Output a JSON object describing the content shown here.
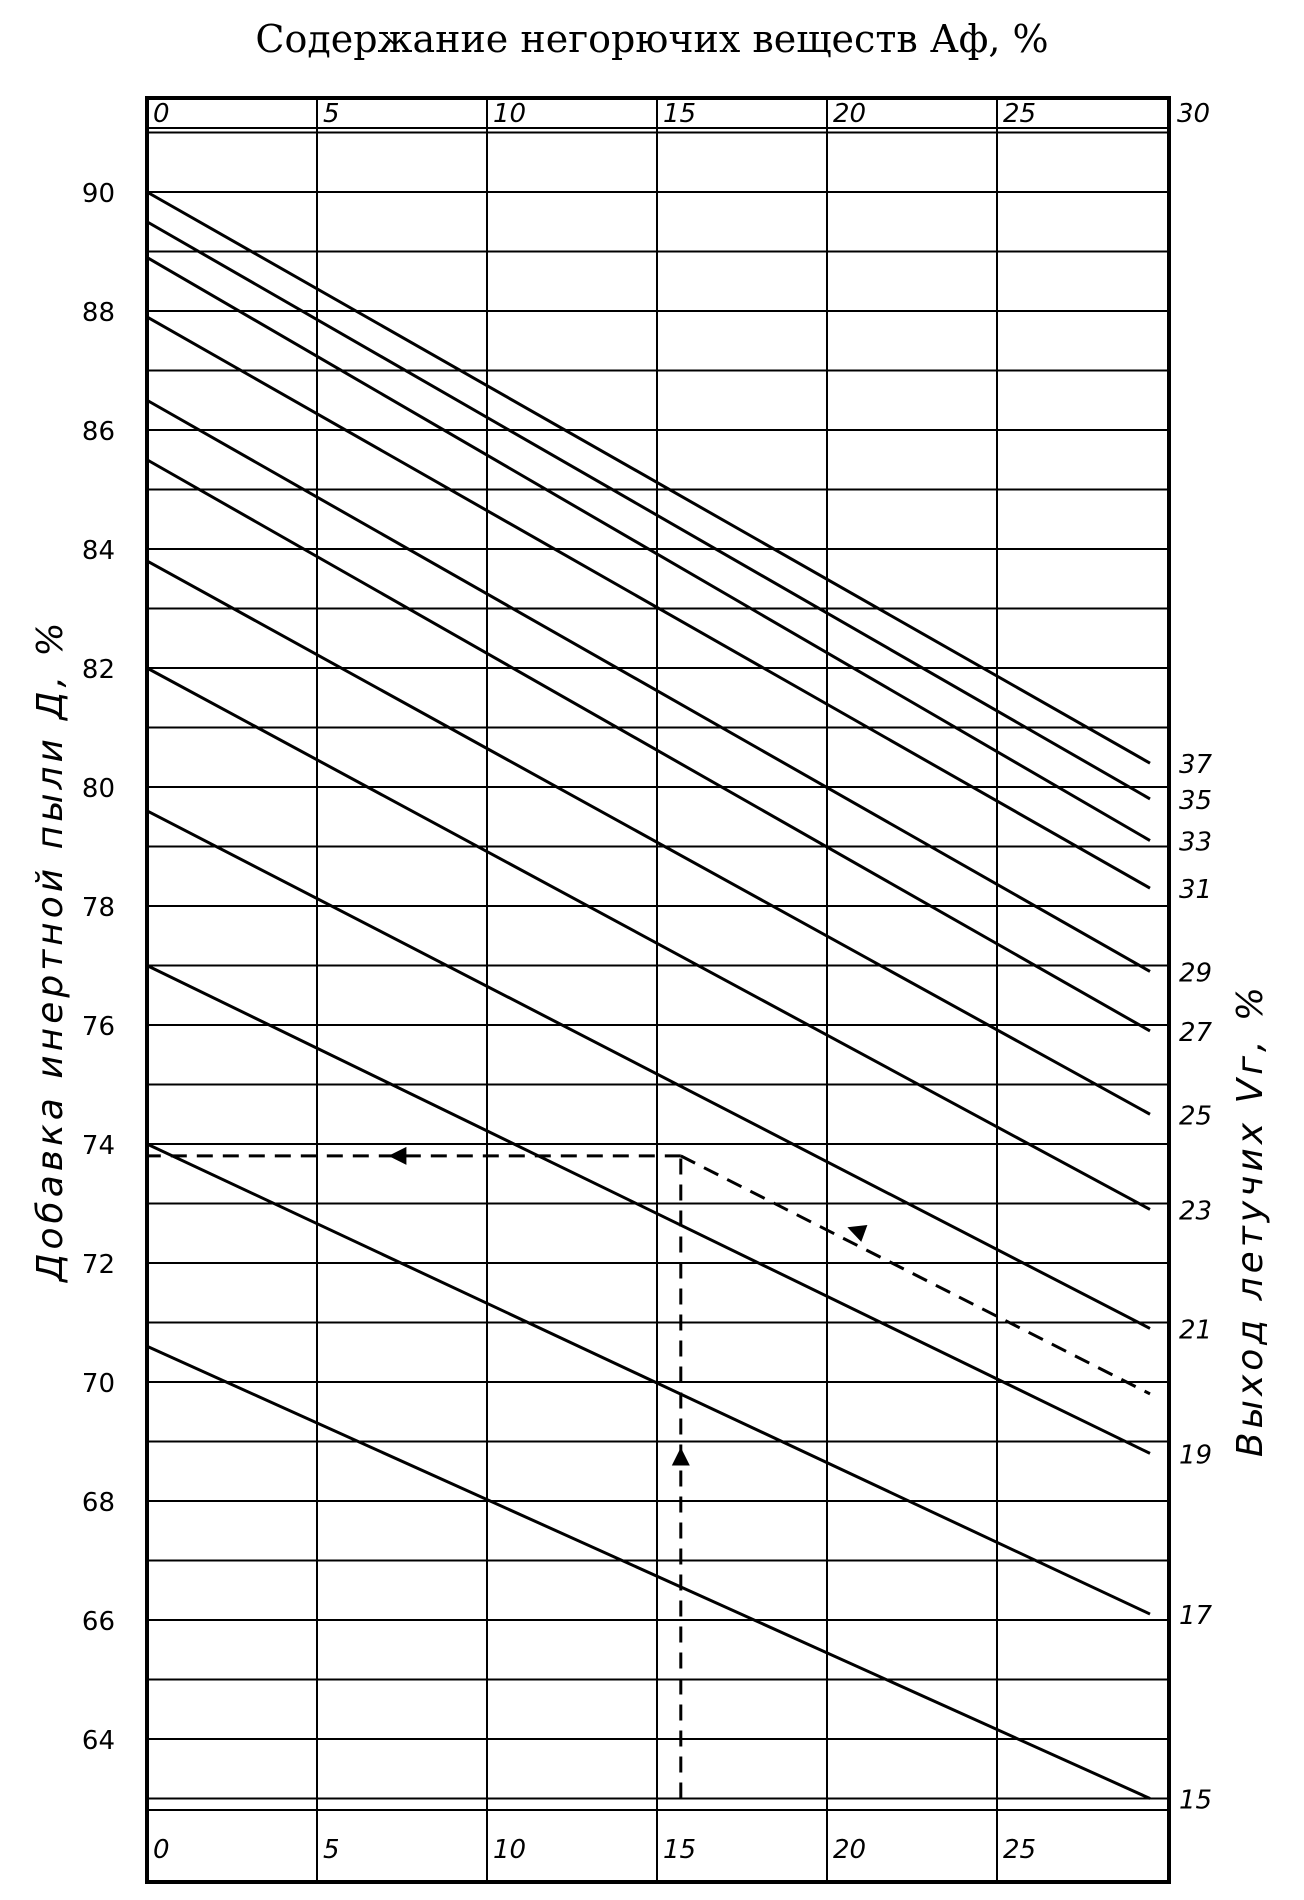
{
  "chart_data": {
    "type": "line",
    "title": "Содержание негорючих веществ Аф, %",
    "xlabel": "",
    "ylabel": "Добавка инертной пыли Д, %",
    "right_label": "Выход летучих Vг, %",
    "xlim": [
      0,
      30
    ],
    "ylim": [
      62,
      92
    ],
    "x_ticks_top": [
      "0",
      "5",
      "10",
      "15",
      "20",
      "25",
      "30"
    ],
    "x_ticks_bottom": [
      "0",
      "5",
      "10",
      "15",
      "20",
      "25"
    ],
    "y_ticks": [
      "90",
      "88",
      "86",
      "84",
      "82",
      "80",
      "78",
      "76",
      "74",
      "72",
      "70",
      "68",
      "66",
      "64"
    ],
    "series": [
      {
        "name": "37",
        "x": [
          0,
          29.5
        ],
        "y": [
          90.0,
          80.4
        ]
      },
      {
        "name": "35",
        "x": [
          0,
          29.5
        ],
        "y": [
          89.5,
          79.8
        ]
      },
      {
        "name": "33",
        "x": [
          0,
          29.5
        ],
        "y": [
          88.9,
          79.1
        ]
      },
      {
        "name": "31",
        "x": [
          0,
          29.5
        ],
        "y": [
          87.9,
          78.3
        ]
      },
      {
        "name": "29",
        "x": [
          0,
          29.5
        ],
        "y": [
          86.5,
          76.9
        ]
      },
      {
        "name": "27",
        "x": [
          0,
          29.5
        ],
        "y": [
          85.5,
          75.9
        ]
      },
      {
        "name": "25",
        "x": [
          0,
          29.5
        ],
        "y": [
          83.8,
          74.5
        ]
      },
      {
        "name": "23",
        "x": [
          0,
          29.5
        ],
        "y": [
          82.0,
          72.9
        ]
      },
      {
        "name": "21",
        "x": [
          0,
          29.5
        ],
        "y": [
          79.6,
          70.9
        ]
      },
      {
        "name": "19",
        "x": [
          0,
          29.5
        ],
        "y": [
          77.0,
          68.8
        ]
      },
      {
        "name": "17",
        "x": [
          0,
          29.5
        ],
        "y": [
          74.0,
          66.1
        ]
      },
      {
        "name": "15",
        "x": [
          0,
          29.5
        ],
        "y": [
          70.6,
          63.0
        ]
      }
    ],
    "example_path": {
      "x": [
        15.7,
        15.7,
        0,
        15.7,
        29.5
      ],
      "y": [
        63.0,
        73.8,
        73.8,
        73.8,
        69.8
      ]
    },
    "grid": true
  }
}
